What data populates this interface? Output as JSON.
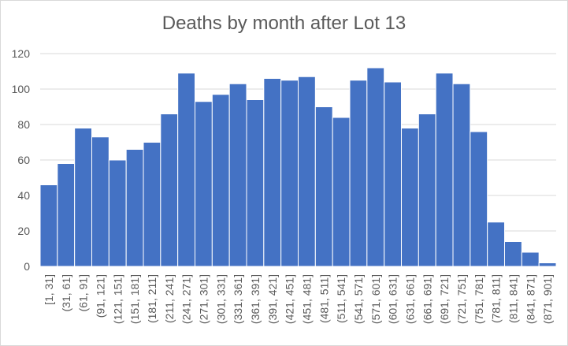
{
  "chart_data": {
    "type": "bar",
    "title": "Deaths by month after Lot 13",
    "xlabel": "",
    "ylabel": "",
    "ylim": [
      0,
      120
    ],
    "yticks": [
      0,
      20,
      40,
      60,
      80,
      100,
      120
    ],
    "grid": true,
    "legend": "none",
    "bar_color": "#4472c4",
    "categories": [
      "[1, 31]",
      "(31, 61]",
      "(61, 91]",
      "(91, 121]",
      "(121, 151]",
      "(151, 181]",
      "(181, 211]",
      "(211, 241]",
      "(241, 271]",
      "(271, 301]",
      "(301, 331]",
      "(331, 361]",
      "(361, 391]",
      "(391, 421]",
      "(421, 451]",
      "(451, 481]",
      "(481, 511]",
      "(511, 541]",
      "(541, 571]",
      "(571, 601]",
      "(601, 631]",
      "(631, 661]",
      "(661, 691]",
      "(691, 721]",
      "(721, 751]",
      "(751, 781]",
      "(781, 811]",
      "(811, 841]",
      "(841, 871]",
      "(871, 901]"
    ],
    "values": [
      46,
      58,
      78,
      73,
      60,
      66,
      70,
      86,
      109,
      93,
      97,
      103,
      94,
      106,
      105,
      107,
      90,
      84,
      105,
      112,
      104,
      78,
      86,
      109,
      103,
      76,
      25,
      14,
      8,
      2
    ]
  }
}
